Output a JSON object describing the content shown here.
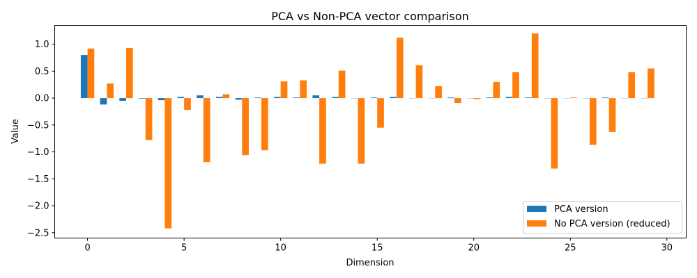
{
  "chart_data": {
    "type": "bar",
    "title": "PCA vs Non-PCA vector comparison",
    "xlabel": "Dimension",
    "ylabel": "Value",
    "xlim": [
      -1.7,
      31.0
    ],
    "ylim": [
      -2.6,
      1.35
    ],
    "xticks": [
      0,
      5,
      10,
      15,
      20,
      25,
      30
    ],
    "yticks": [
      -2.5,
      -2.0,
      -1.5,
      -1.0,
      -0.5,
      0.0,
      0.5,
      1.0
    ],
    "grid": false,
    "legend_position": "lower-right",
    "x": [
      0,
      1,
      2,
      3,
      4,
      5,
      6,
      7,
      8,
      9,
      10,
      11,
      12,
      13,
      14,
      15,
      16,
      17,
      18,
      19,
      20,
      21,
      22,
      23,
      24,
      25,
      26,
      27,
      28,
      29
    ],
    "series": [
      {
        "name": "PCA version",
        "color": "#1f77b4",
        "values": [
          0.8,
          -0.12,
          -0.05,
          -0.01,
          -0.04,
          0.02,
          0.05,
          0.02,
          -0.03,
          0.01,
          0.02,
          0.01,
          0.05,
          0.02,
          0.0,
          0.01,
          0.02,
          0.0,
          0.0,
          0.01,
          0.0,
          0.01,
          0.02,
          0.01,
          0.0,
          0.0,
          0.0,
          0.01,
          0.0,
          0.0
        ]
      },
      {
        "name": "No PCA version (reduced)",
        "color": "#ff7f0e",
        "values": [
          0.92,
          0.27,
          0.93,
          -0.78,
          -2.42,
          -0.22,
          -1.19,
          0.07,
          -1.06,
          -0.97,
          0.31,
          0.33,
          -1.22,
          0.51,
          -1.22,
          -0.55,
          1.12,
          0.61,
          0.22,
          -0.09,
          -0.02,
          0.3,
          0.48,
          1.2,
          -1.31,
          0.01,
          -0.87,
          -0.63,
          0.48,
          0.55
        ]
      }
    ]
  }
}
